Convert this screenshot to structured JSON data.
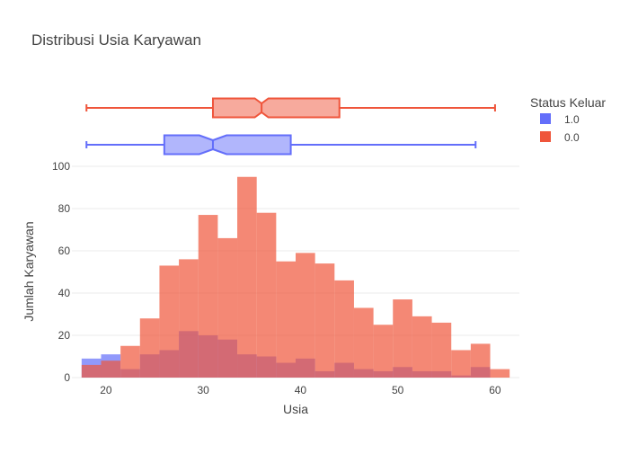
{
  "chart_data": {
    "type": "histogram",
    "title": "Distribusi Usia Karyawan",
    "xlabel": "Usia",
    "ylabel": "Jumlah Karyawan",
    "xlim": [
      16.5,
      62.5
    ],
    "ylim": [
      0,
      100
    ],
    "x_ticks": [
      20,
      30,
      40,
      50,
      60
    ],
    "y_ticks": [
      0,
      20,
      40,
      60,
      80,
      100
    ],
    "bin_edges": [
      17.5,
      19.5,
      21.5,
      23.5,
      25.5,
      27.5,
      29.5,
      31.5,
      33.5,
      35.5,
      37.5,
      39.5,
      41.5,
      43.5,
      45.5,
      47.5,
      49.5,
      51.5,
      53.5,
      55.5,
      57.5,
      59.5,
      61.5
    ],
    "barmode": "overlay",
    "legend": {
      "title": "Status Keluar",
      "placement": "top-right"
    },
    "series": [
      {
        "name": "1.0",
        "color": "#636efa",
        "counts": [
          9,
          11,
          4,
          11,
          13,
          22,
          20,
          18,
          11,
          10,
          7,
          9,
          3,
          7,
          4,
          3,
          5,
          3,
          3,
          1,
          5,
          0
        ],
        "box": {
          "min": 18,
          "q1": 26,
          "median": 31,
          "q3": 39,
          "max": 58,
          "notch_low": 29.6,
          "notch_high": 32.4
        }
      },
      {
        "name": "0.0",
        "color": "#ef553b",
        "counts": [
          6,
          8,
          15,
          28,
          53,
          56,
          77,
          66,
          95,
          78,
          55,
          59,
          54,
          46,
          33,
          25,
          37,
          29,
          26,
          13,
          16,
          4
        ],
        "box": {
          "min": 18,
          "q1": 31,
          "median": 36,
          "q3": 44,
          "max": 60,
          "notch_low": 35.3,
          "notch_high": 36.7
        }
      }
    ]
  }
}
